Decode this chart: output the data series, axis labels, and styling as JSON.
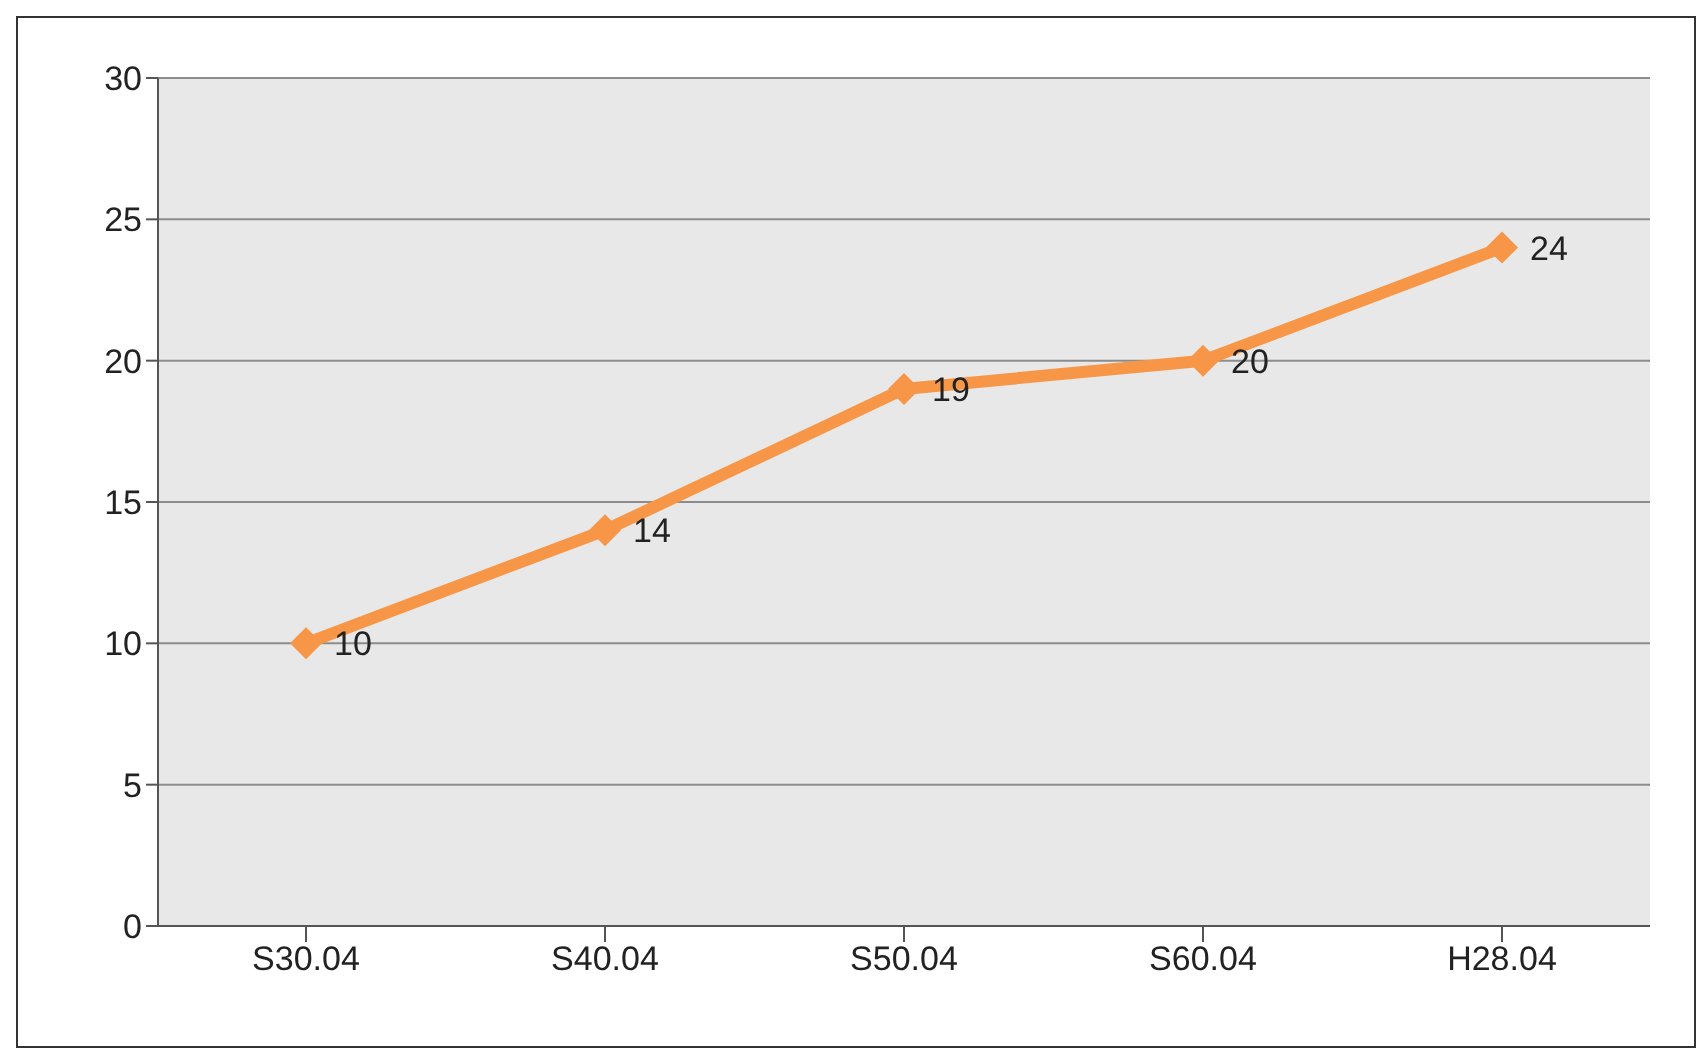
{
  "chart_data": {
    "type": "line",
    "categories": [
      "S30.04",
      "S40.04",
      "S50.04",
      "S60.04",
      "H28.04"
    ],
    "series": [
      {
        "color": "#f79646",
        "values": [
          10,
          14,
          19,
          20,
          24
        ]
      }
    ],
    "ylim": [
      0,
      30
    ],
    "yticks": [
      0,
      5,
      10,
      15,
      20,
      25,
      30
    ],
    "grid": "y",
    "legend": false,
    "marker": "diamond",
    "line_style": "solid",
    "data_labels": true
  }
}
